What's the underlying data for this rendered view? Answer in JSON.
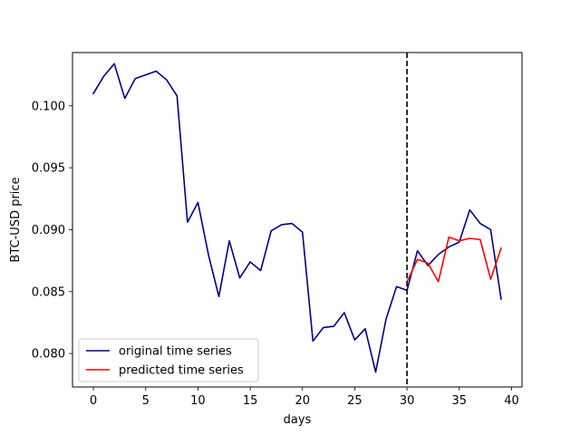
{
  "chart_data": {
    "type": "line",
    "xlabel": "days",
    "ylabel": "BTC-USD price",
    "xlim": [
      -2,
      41
    ],
    "ylim": [
      0.0773,
      0.1043
    ],
    "xticks": [
      0,
      5,
      10,
      15,
      20,
      25,
      30,
      35,
      40
    ],
    "yticks": [
      0.08,
      0.085,
      0.09,
      0.095,
      0.1
    ],
    "ytick_labels": [
      "0.080",
      "0.085",
      "0.090",
      "0.095",
      "0.100"
    ],
    "split_x": 30,
    "legend_position": "lower-left",
    "grid": false,
    "series": [
      {
        "name": "original time series",
        "color": "#00008b",
        "x": [
          0,
          1,
          2,
          3,
          4,
          5,
          6,
          7,
          8,
          9,
          10,
          11,
          12,
          13,
          14,
          15,
          16,
          17,
          18,
          19,
          20,
          21,
          22,
          23,
          24,
          25,
          26,
          27,
          28,
          29,
          30,
          31,
          32,
          33,
          34,
          35,
          36,
          37,
          38,
          39
        ],
        "values": [
          0.101,
          0.1024,
          0.1034,
          0.1006,
          0.1022,
          0.1025,
          0.1028,
          0.1021,
          0.1008,
          0.0906,
          0.0922,
          0.088,
          0.0846,
          0.0891,
          0.0861,
          0.0874,
          0.0867,
          0.0899,
          0.0904,
          0.0905,
          0.0898,
          0.081,
          0.0821,
          0.0822,
          0.0833,
          0.0811,
          0.082,
          0.0785,
          0.0828,
          0.0854,
          0.0851,
          0.0883,
          0.0871,
          0.088,
          0.0886,
          0.089,
          0.0916,
          0.0905,
          0.09,
          0.0844
        ]
      },
      {
        "name": "predicted time series",
        "color": "#ff0000",
        "x": [
          30,
          31,
          32,
          33,
          34,
          35,
          36,
          37,
          38,
          39
        ],
        "values": [
          0.0858,
          0.0876,
          0.0873,
          0.0858,
          0.0894,
          0.0891,
          0.0893,
          0.0892,
          0.086,
          0.0885
        ]
      }
    ]
  }
}
